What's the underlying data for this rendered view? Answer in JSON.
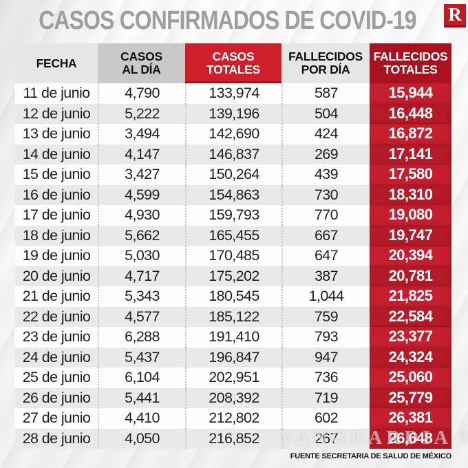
{
  "page": {
    "title": "CASOS CONFIRMADOS DE COVID-19",
    "logo_letter": "R",
    "source": "FUENTE SECRETARIA DE SALUD DE MÉXICO",
    "watermark": "VANGUARDIA MX"
  },
  "colors": {
    "brand_red": "#c21b24",
    "header_red_bright": "#ce1f2b",
    "header_red_dark": "#a9121e",
    "body_red": "#c51f2e",
    "body_red_alt": "#b41a27",
    "title_gray": "#9e9e9e",
    "row_alt_gray": "#e9e9e9"
  },
  "table": {
    "headers": [
      {
        "label": "FECHA",
        "style": "gray-light"
      },
      {
        "label": "CASOS\nAL DÍA",
        "style": "gray-mid"
      },
      {
        "label": "CASOS\nTOTALES",
        "style": "red-bright"
      },
      {
        "label": "FALLECIDOS\nPOR DÍA",
        "style": "gray-light"
      },
      {
        "label": "FALLECIDOS\nTOTALES",
        "style": "red-dark"
      }
    ],
    "rows": [
      {
        "fecha": "11 de junio",
        "casos_al_dia": "4,790",
        "casos_totales": "133,974",
        "fallecidos_por_dia": "587",
        "fallecidos_totales": "15,944"
      },
      {
        "fecha": "12 de junio",
        "casos_al_dia": "5,222",
        "casos_totales": "139,196",
        "fallecidos_por_dia": "504",
        "fallecidos_totales": "16,448"
      },
      {
        "fecha": "13 de junio",
        "casos_al_dia": "3,494",
        "casos_totales": "142,690",
        "fallecidos_por_dia": "424",
        "fallecidos_totales": "16,872"
      },
      {
        "fecha": "14 de junio",
        "casos_al_dia": "4,147",
        "casos_totales": "146,837",
        "fallecidos_por_dia": "269",
        "fallecidos_totales": "17,141"
      },
      {
        "fecha": "15 de junio",
        "casos_al_dia": "3,427",
        "casos_totales": "150,264",
        "fallecidos_por_dia": "439",
        "fallecidos_totales": "17,580"
      },
      {
        "fecha": "16 de junio",
        "casos_al_dia": "4,599",
        "casos_totales": "154,863",
        "fallecidos_por_dia": "730",
        "fallecidos_totales": "18,310"
      },
      {
        "fecha": "17 de junio",
        "casos_al_dia": "4,930",
        "casos_totales": "159,793",
        "fallecidos_por_dia": "770",
        "fallecidos_totales": "19,080"
      },
      {
        "fecha": "18 de junio",
        "casos_al_dia": "5,662",
        "casos_totales": "165,455",
        "fallecidos_por_dia": "667",
        "fallecidos_totales": "19,747"
      },
      {
        "fecha": "19 de junio",
        "casos_al_dia": "5,030",
        "casos_totales": "170,485",
        "fallecidos_por_dia": "647",
        "fallecidos_totales": "20,394"
      },
      {
        "fecha": "20 de junio",
        "casos_al_dia": "4,717",
        "casos_totales": "175,202",
        "fallecidos_por_dia": "387",
        "fallecidos_totales": "20,781"
      },
      {
        "fecha": "21 de junio",
        "casos_al_dia": "5,343",
        "casos_totales": "180,545",
        "fallecidos_por_dia": "1,044",
        "fallecidos_totales": "21,825"
      },
      {
        "fecha": "22 de junio",
        "casos_al_dia": "4,577",
        "casos_totales": "185,122",
        "fallecidos_por_dia": "759",
        "fallecidos_totales": "22,584"
      },
      {
        "fecha": "23 de junio",
        "casos_al_dia": "6,288",
        "casos_totales": "191,410",
        "fallecidos_por_dia": "793",
        "fallecidos_totales": "23,377"
      },
      {
        "fecha": "24 de junio",
        "casos_al_dia": "5,437",
        "casos_totales": "196,847",
        "fallecidos_por_dia": "947",
        "fallecidos_totales": "24,324"
      },
      {
        "fecha": "25 de junio",
        "casos_al_dia": "6,104",
        "casos_totales": "202,951",
        "fallecidos_por_dia": "736",
        "fallecidos_totales": "25,060"
      },
      {
        "fecha": "26 de junio",
        "casos_al_dia": "5,441",
        "casos_totales": "208,392",
        "fallecidos_por_dia": "719",
        "fallecidos_totales": "25,779"
      },
      {
        "fecha": "27 de junio",
        "casos_al_dia": "4,410",
        "casos_totales": "212,802",
        "fallecidos_por_dia": "602",
        "fallecidos_totales": "26,381"
      },
      {
        "fecha": "28 de junio",
        "casos_al_dia": "4,050",
        "casos_totales": "216,852",
        "fallecidos_por_dia": "267",
        "fallecidos_totales": "26,648"
      }
    ]
  },
  "chart_data": {
    "type": "table",
    "title": "CASOS CONFIRMADOS DE COVID-19",
    "columns": [
      "FECHA",
      "CASOS AL DÍA",
      "CASOS TOTALES",
      "FALLECIDOS POR DÍA",
      "FALLECIDOS TOTALES"
    ],
    "rows": [
      [
        "11 de junio",
        4790,
        133974,
        587,
        15944
      ],
      [
        "12 de junio",
        5222,
        139196,
        504,
        16448
      ],
      [
        "13 de junio",
        3494,
        142690,
        424,
        16872
      ],
      [
        "14 de junio",
        4147,
        146837,
        269,
        17141
      ],
      [
        "15 de junio",
        3427,
        150264,
        439,
        17580
      ],
      [
        "16 de junio",
        4599,
        154863,
        730,
        18310
      ],
      [
        "17 de junio",
        4930,
        159793,
        770,
        19080
      ],
      [
        "18 de junio",
        5662,
        165455,
        667,
        19747
      ],
      [
        "19 de junio",
        5030,
        170485,
        647,
        20394
      ],
      [
        "20 de junio",
        4717,
        175202,
        387,
        20781
      ],
      [
        "21 de junio",
        5343,
        180545,
        1044,
        21825
      ],
      [
        "22 de junio",
        4577,
        185122,
        759,
        22584
      ],
      [
        "23 de junio",
        6288,
        191410,
        793,
        23377
      ],
      [
        "24 de junio",
        5437,
        196847,
        947,
        24324
      ],
      [
        "25 de junio",
        6104,
        202951,
        736,
        25060
      ],
      [
        "26 de junio",
        5441,
        208392,
        719,
        25779
      ],
      [
        "27 de junio",
        4410,
        212802,
        602,
        26381
      ],
      [
        "28 de junio",
        4050,
        216852,
        267,
        26648
      ]
    ],
    "source": "FUENTE SECRETARIA DE SALUD DE MÉXICO"
  }
}
